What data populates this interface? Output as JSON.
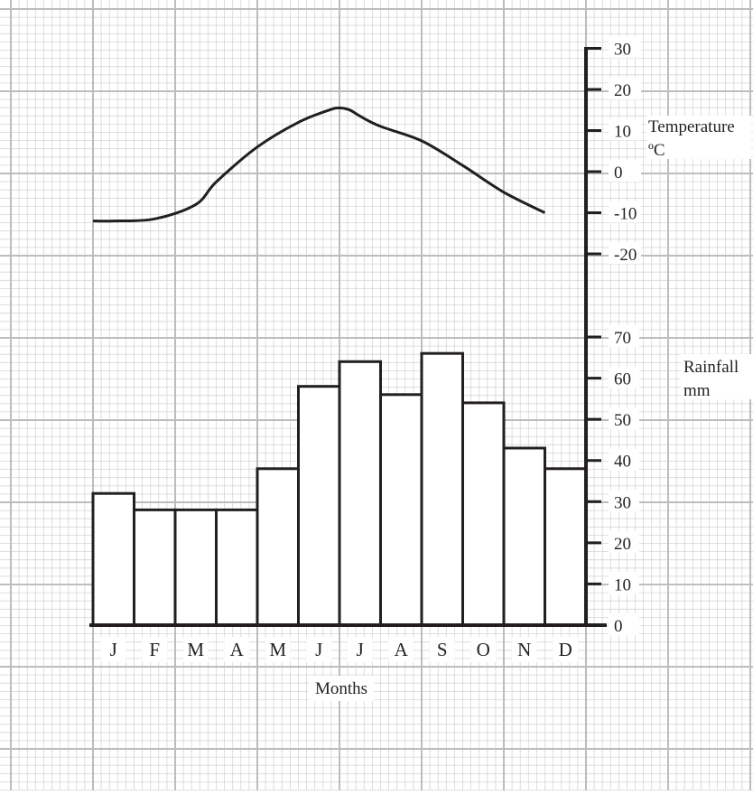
{
  "chart_data": [
    {
      "type": "line",
      "ylabel": "Temperature",
      "ylabel_unit": "ºC",
      "categories": [
        "J",
        "F",
        "M",
        "A",
        "M",
        "J",
        "J",
        "A",
        "S",
        "O",
        "N",
        "D"
      ],
      "series": [
        {
          "x": [
            0,
            0.5,
            1.5,
            2.5,
            3.0,
            4.0,
            5.0,
            5.75,
            6.0,
            6.25,
            6.5,
            7.0,
            8.0,
            9.0,
            10.0,
            11.0
          ],
          "values": [
            -12,
            -12,
            -11.5,
            -8,
            -2.5,
            6,
            12,
            15,
            15.5,
            15,
            13.5,
            11,
            7.5,
            1.5,
            -5,
            -10
          ]
        }
      ],
      "ylim": [
        -20,
        30
      ],
      "yticks": [
        30,
        20,
        10,
        0,
        -10,
        -20
      ],
      "ytick_labels": [
        "30",
        "20",
        "10",
        "0",
        "-10",
        "-20"
      ]
    },
    {
      "type": "bar",
      "xlabel": "Months",
      "ylabel": "Rainfall",
      "ylabel_unit": "mm",
      "categories": [
        "J",
        "F",
        "M",
        "A",
        "M",
        "J",
        "J",
        "A",
        "S",
        "O",
        "N",
        "D"
      ],
      "values": [
        32,
        28,
        28,
        28,
        38,
        58,
        64,
        56,
        66,
        54,
        43,
        38
      ],
      "ylim": [
        0,
        70
      ],
      "yticks": [
        70,
        60,
        50,
        40,
        30,
        20,
        10,
        0
      ],
      "ytick_labels": [
        "70",
        "60",
        "50",
        "40",
        "30",
        "20",
        "10",
        "0"
      ]
    }
  ],
  "colors": {
    "grid_minor": "#d6d6d6",
    "grid_major": "#bdbdbd",
    "ink": "#231f20"
  }
}
